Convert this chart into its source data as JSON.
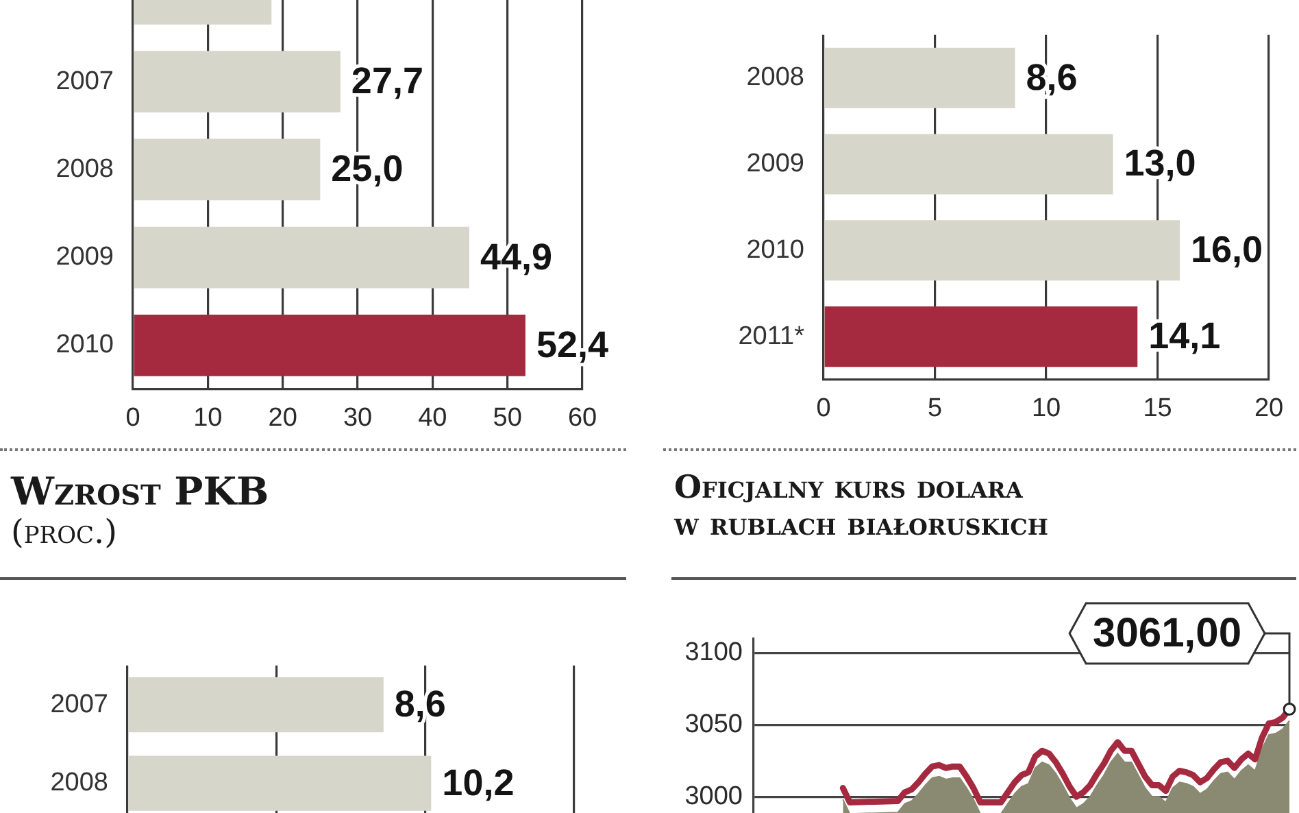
{
  "chart_data": [
    {
      "type": "bar",
      "orientation": "horizontal",
      "categories": [
        null,
        "2007",
        "2008",
        "2009",
        "2010"
      ],
      "values": [
        18.5,
        27.7,
        25.0,
        44.9,
        52.4
      ],
      "colors": [
        "#d6d6ca",
        "#d6d6ca",
        "#d6d6ca",
        "#d6d6ca",
        "#a52a40"
      ],
      "value_labels": [
        null,
        "27,7",
        "25,0",
        "44,9",
        "52,4"
      ],
      "xlim": [
        0,
        60
      ],
      "xticks": [
        0,
        10,
        20,
        30,
        40,
        50,
        60
      ],
      "grid": "x"
    },
    {
      "type": "bar",
      "orientation": "horizontal",
      "categories": [
        "2008",
        "2009",
        "2010",
        "2011*"
      ],
      "values": [
        8.6,
        13.0,
        16.0,
        14.1
      ],
      "colors": [
        "#d6d6ca",
        "#d6d6ca",
        "#d6d6ca",
        "#a52a40"
      ],
      "value_labels": [
        "8,6",
        "13,0",
        "16,0",
        "14,1"
      ],
      "xlim": [
        0,
        20
      ],
      "xticks": [
        0,
        5,
        10,
        15,
        20
      ],
      "grid": "x"
    },
    {
      "type": "bar",
      "orientation": "horizontal",
      "title": "Wzrost PKB",
      "subtitle": "(proc.)",
      "categories": [
        "2007",
        "2008"
      ],
      "values": [
        8.6,
        10.2
      ],
      "colors": [
        "#d6d6ca",
        "#d6d6ca"
      ],
      "value_labels": [
        "8,6",
        "10,2"
      ],
      "xlim": [
        0,
        15
      ],
      "xticks": [
        {
          "value": 0,
          "label": null
        },
        {
          "value": 5,
          "label": null
        },
        {
          "value": 10,
          "label": null
        },
        {
          "value": 15,
          "label": null
        }
      ],
      "grid": "x",
      "tick_labels": "y"
    },
    {
      "type": "line",
      "title": "Oficjalny kurs dolara w rublach białoruskich",
      "categories": [
        null,
        null,
        null,
        null,
        null,
        null,
        null,
        null,
        null,
        null,
        null,
        null,
        null,
        null,
        null,
        null,
        null,
        null,
        null,
        null,
        null,
        null,
        null,
        null,
        null,
        null,
        null,
        null,
        null,
        null,
        null,
        null,
        null,
        null,
        null,
        null,
        null,
        null,
        null,
        null,
        null,
        null,
        null,
        null,
        null,
        null,
        null,
        null,
        null,
        null,
        null,
        null,
        null,
        null,
        null,
        null,
        null,
        null,
        null,
        null,
        null,
        null,
        null,
        null,
        null,
        null,
        null,
        null,
        null,
        null,
        null,
        null,
        null,
        null,
        null,
        null,
        null,
        null,
        null
      ],
      "series": [
        {
          "type": "area",
          "color": "#8a8a72",
          "values": [
            null,
            null,
            null,
            null,
            null,
            null,
            null,
            null,
            null,
            null,
            null,
            null,
            null,
            2998,
            2988,
            null,
            null,
            null,
            null,
            null,
            null,
            2989,
            2995,
            2997,
            3002,
            3008,
            3013,
            3014,
            3012,
            3013,
            3013,
            3006,
            2998,
            2988,
            null,
            null,
            2988,
            2995,
            3002,
            3007,
            3009,
            3020,
            3024,
            3022,
            3016,
            3008,
            2999,
            2992,
            2995,
            3000,
            3008,
            3015,
            3024,
            3030,
            3024,
            3024,
            3015,
            3006,
            3000,
            3000,
            2996,
            3006,
            3010,
            3009,
            3007,
            3002,
            3005,
            3011,
            3016,
            3017,
            3012,
            3018,
            3022,
            3018,
            3033,
            3043,
            3044,
            3047,
            3053
          ]
        },
        {
          "type": "line",
          "color": "#a52a40",
          "values": [
            null,
            null,
            null,
            null,
            null,
            null,
            null,
            null,
            null,
            null,
            null,
            null,
            null,
            3006,
            2996,
            null,
            null,
            null,
            null,
            null,
            null,
            2997,
            3003,
            3005,
            3010,
            3016,
            3021,
            3022,
            3020,
            3021,
            3021,
            3014,
            3006,
            2996,
            null,
            null,
            2996,
            3003,
            3010,
            3015,
            3017,
            3028,
            3032,
            3030,
            3024,
            3016,
            3007,
            3000,
            3003,
            3008,
            3016,
            3023,
            3032,
            3038,
            3032,
            3032,
            3023,
            3014,
            3008,
            3008,
            3004,
            3014,
            3018,
            3017,
            3015,
            3010,
            3013,
            3019,
            3024,
            3025,
            3020,
            3026,
            3030,
            3026,
            3041,
            3051,
            3052,
            3055,
            3061
          ]
        }
      ],
      "ylim": [
        2980,
        3110
      ],
      "yticks": [
        3000,
        3050,
        3100
      ],
      "grid": "y",
      "tick_labels": "y",
      "annotations": [
        "3061,00"
      ]
    }
  ]
}
